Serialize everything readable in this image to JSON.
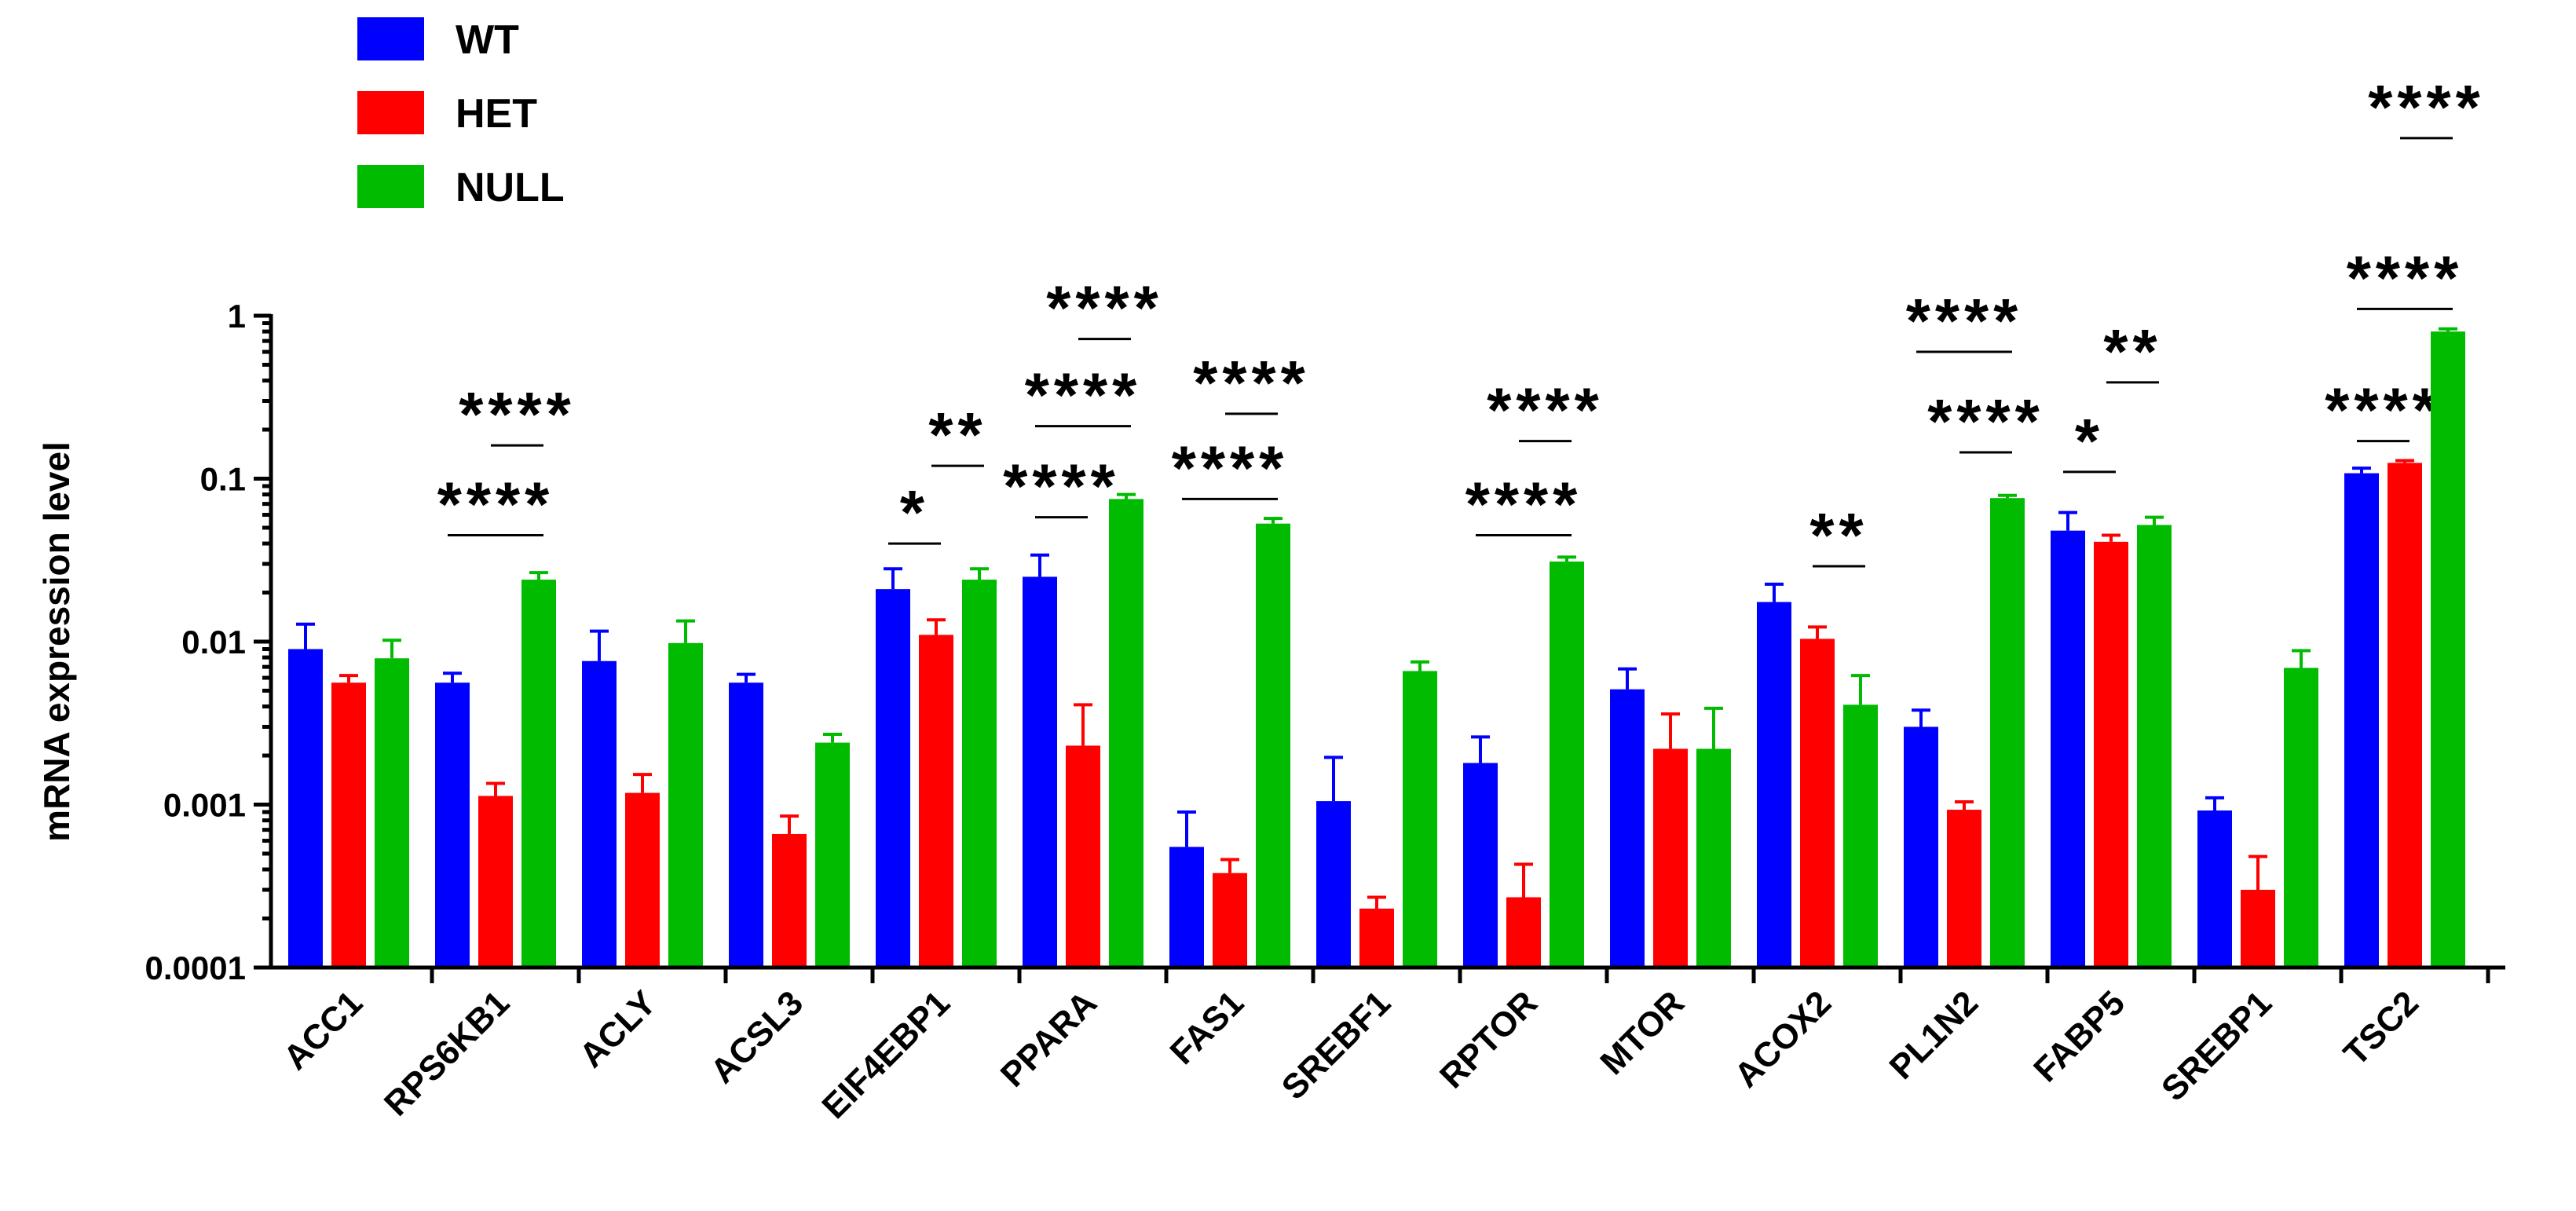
{
  "chart_data": {
    "type": "bar",
    "ylabel": "mRNA expression level",
    "xlabel": "",
    "yscale": "log",
    "ylim": [
      0.0001,
      1
    ],
    "yticks": [
      {
        "value": 0.0001,
        "label": "0.0001"
      },
      {
        "value": 0.001,
        "label": "0.001"
      },
      {
        "value": 0.01,
        "label": "0.01"
      },
      {
        "value": 0.1,
        "label": "0.1"
      },
      {
        "value": 1,
        "label": "1"
      }
    ],
    "legend_position": "top-left",
    "categories": [
      "ACC1",
      "RPS6KB1",
      "ACLY",
      "ACSL3",
      "EIF4EBP1",
      "PPARA",
      "FAS1",
      "SREBF1",
      "RPTOR",
      "MTOR",
      "ACOX2",
      "PL1N2",
      "FABP5",
      "SREBP1",
      "TSC2"
    ],
    "series": [
      {
        "name": "WT",
        "color": "#0000ff",
        "values": [
          0.009,
          0.0056,
          0.0076,
          0.0056,
          0.021,
          0.025,
          0.00055,
          0.00105,
          0.0018,
          0.0051,
          0.0175,
          0.003,
          0.048,
          0.00092,
          0.108
        ],
        "errors": [
          0.0038,
          0.0008,
          0.004,
          0.0007,
          0.007,
          0.009,
          0.00035,
          0.0009,
          0.0008,
          0.0017,
          0.005,
          0.0008,
          0.014,
          0.00018,
          0.008
        ]
      },
      {
        "name": "HET",
        "color": "#ff0000",
        "values": [
          0.0056,
          0.00113,
          0.00118,
          0.00066,
          0.011,
          0.0023,
          0.00038,
          0.00023,
          0.00027,
          0.0022,
          0.0104,
          0.00093,
          0.041,
          0.0003,
          0.125
        ],
        "errors": [
          0.0006,
          0.00022,
          0.00035,
          0.00019,
          0.0026,
          0.0018,
          8e-05,
          4e-05,
          0.00016,
          0.0014,
          0.0019,
          0.00011,
          0.004,
          0.00018,
          0.004
        ]
      },
      {
        "name": "NULL",
        "color": "#00bb00",
        "values": [
          0.0079,
          0.024,
          0.0098,
          0.0024,
          0.024,
          0.075,
          0.053,
          0.0066,
          0.031,
          0.0022,
          0.0041,
          0.076,
          0.052,
          0.0069,
          0.8
        ],
        "errors": [
          0.0023,
          0.0025,
          0.0036,
          0.0003,
          0.004,
          0.005,
          0.004,
          0.0009,
          0.002,
          0.0017,
          0.0021,
          0.003,
          0.006,
          0.0019,
          0.03
        ]
      }
    ],
    "significance": [
      {
        "category": "RPS6KB1",
        "from": "HET",
        "to": "NULL",
        "label": "****",
        "value": 0.16
      },
      {
        "category": "RPS6KB1",
        "from": "WT",
        "to": "NULL",
        "label": "****",
        "value": 0.045
      },
      {
        "category": "EIF4EBP1",
        "from": "HET",
        "to": "NULL",
        "label": "**",
        "value": 0.12
      },
      {
        "category": "EIF4EBP1",
        "from": "WT",
        "to": "HET",
        "label": "*",
        "value": 0.04
      },
      {
        "category": "PPARA",
        "from": "HET",
        "to": "NULL",
        "label": "****",
        "value": 0.72
      },
      {
        "category": "PPARA",
        "from": "WT",
        "to": "NULL",
        "label": "****",
        "value": 0.21
      },
      {
        "category": "PPARA",
        "from": "WT",
        "to": "HET",
        "label": "****",
        "value": 0.058
      },
      {
        "category": "FAS1",
        "from": "HET",
        "to": "NULL",
        "label": "****",
        "value": 0.25
      },
      {
        "category": "FAS1",
        "from": "WT",
        "to": "NULL",
        "label": "****",
        "value": 0.075
      },
      {
        "category": "RPTOR",
        "from": "HET",
        "to": "NULL",
        "label": "****",
        "value": 0.17
      },
      {
        "category": "RPTOR",
        "from": "WT",
        "to": "NULL",
        "label": "****",
        "value": 0.045
      },
      {
        "category": "ACOX2",
        "from": "HET",
        "to": "NULL",
        "label": "**",
        "value": 0.029
      },
      {
        "category": "PL1N2",
        "from": "WT",
        "to": "NULL",
        "label": "****",
        "value": 0.6
      },
      {
        "category": "PL1N2",
        "from": "HET",
        "to": "NULL",
        "label": "****",
        "value": 0.145
      },
      {
        "category": "FABP5",
        "from": "HET",
        "to": "NULL",
        "label": "**",
        "value": 0.39
      },
      {
        "category": "FABP5",
        "from": "WT",
        "to": "HET",
        "label": "*",
        "value": 0.11
      },
      {
        "category": "TSC2",
        "from": "HET",
        "to": "NULL",
        "label": "****",
        "value": 12.3
      },
      {
        "category": "TSC2",
        "from": "WT",
        "to": "NULL",
        "label": "****",
        "value": 1.1
      },
      {
        "category": "TSC2",
        "from": "WT",
        "to": "HET",
        "label": "****",
        "value": 0.17
      }
    ]
  }
}
